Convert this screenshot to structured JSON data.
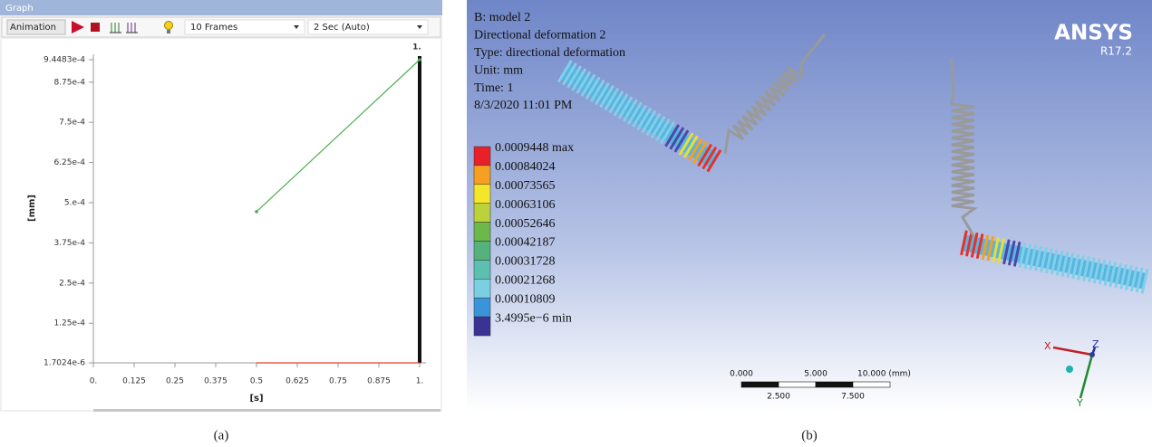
{
  "window": {
    "title": "Graph"
  },
  "toolbar": {
    "animation": "Animation",
    "frames": "10 Frames",
    "duration": "2 Sec (Auto)"
  },
  "chart_data": {
    "type": "line",
    "xlabel": "[s]",
    "ylabel": "[mm]",
    "cursor_label": "1.",
    "x": [
      0.5,
      1
    ],
    "series": [
      {
        "color": "#4caf50",
        "values": [
          0.000472,
          0.00094483
        ]
      },
      {
        "color": "#e53935",
        "values": [
          1.7024e-06,
          1.7024e-06
        ]
      }
    ],
    "xlim": [
      0,
      1
    ],
    "ylim": [
      1.7024e-06,
      0.00094483
    ],
    "xticks": [
      {
        "value": 0,
        "label": "0."
      },
      0.125,
      0.25,
      0.375,
      0.5,
      0.625,
      0.75,
      0.875,
      {
        "value": 1,
        "label": "1."
      }
    ],
    "yticks": [
      {
        "value": 1.7024e-06,
        "label": "1.7024e-6"
      },
      {
        "value": 0.000125,
        "label": "1.25e-4"
      },
      {
        "value": 0.00025,
        "label": "2.5e-4"
      },
      {
        "value": 0.000375,
        "label": "3.75e-4"
      },
      {
        "value": 0.0005,
        "label": "5.e-4"
      },
      {
        "value": 0.000625,
        "label": "6.25e-4"
      },
      {
        "value": 0.00075,
        "label": "7.5e-4"
      },
      {
        "value": 0.000875,
        "label": "8.75e-4"
      },
      {
        "value": 0.00094483,
        "label": "9.4483e-4"
      }
    ]
  },
  "viewer": {
    "info": [
      "B: model 2",
      "Directional deformation 2",
      "Type: directional deformation",
      "Unit: mm",
      "Time: 1",
      "8/3/2020 11:01 PM"
    ],
    "legend": [
      {
        "label": "0.0009448 max",
        "color": "#e8202a"
      },
      {
        "label": "0.00084024",
        "color": "#f5a020"
      },
      {
        "label": "0.00073565",
        "color": "#f4e628"
      },
      {
        "label": "0.00063106",
        "color": "#bcd23a"
      },
      {
        "label": "0.00052646",
        "color": "#6cb848"
      },
      {
        "label": "0.00042187",
        "color": "#55b27c"
      },
      {
        "label": "0.00031728",
        "color": "#5cc0b0"
      },
      {
        "label": "0.00021268",
        "color": "#7ad0e0"
      },
      {
        "label": "0.00010809",
        "color": "#3a94da"
      },
      {
        "label": "3.4995e−6 min",
        "color": "#3a3294"
      }
    ],
    "logo": "ANSYS",
    "version": "R17.2",
    "scale": {
      "top": [
        "0.000",
        "5.000",
        "10.000 (mm)"
      ],
      "bottom": [
        "2.500",
        "7.500"
      ]
    },
    "triad": {
      "x": "X",
      "y": "Y",
      "z": "Z"
    }
  },
  "captions": [
    "(a)",
    "(b)"
  ]
}
